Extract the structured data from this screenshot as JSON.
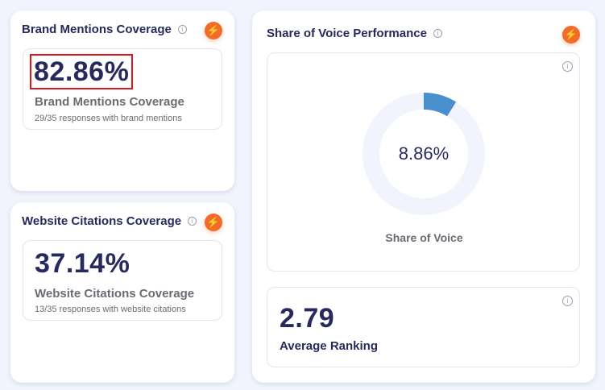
{
  "brand": {
    "title": "Brand Mentions Coverage",
    "value": "82.86%",
    "label": "Brand Mentions Coverage",
    "detail": "29/35 responses with brand mentions"
  },
  "website": {
    "title": "Website Citations Coverage",
    "value": "37.14%",
    "label": "Website Citations Coverage",
    "detail": "13/35 responses with website citations"
  },
  "sov": {
    "title": "Share of Voice Performance",
    "value": "8.86%",
    "percent": 8.86,
    "label": "Share of Voice",
    "colors": {
      "fill": "#4a8fcd",
      "track": "#f1f4fd"
    }
  },
  "ranking": {
    "value": "2.79",
    "label": "Average Ranking"
  },
  "icons": {
    "info": "i",
    "bolt": "⚡"
  },
  "colors": {
    "accent": "#f26b2a",
    "text": "#262a5c"
  }
}
